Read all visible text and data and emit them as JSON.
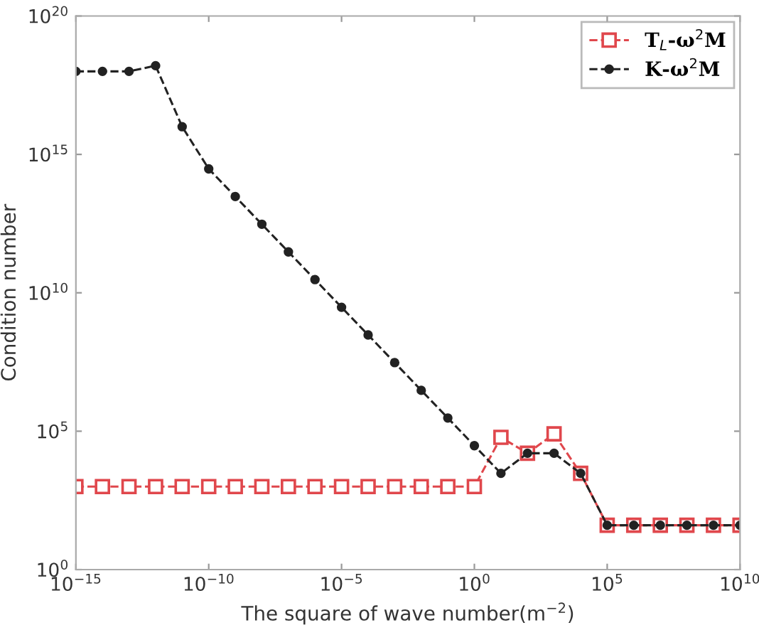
{
  "chart_data": {
    "type": "line",
    "xlabel": "The square of wave number(m$^{−2}$)",
    "ylabel": "Condition number",
    "log": "xy",
    "x": [
      1e-15,
      1e-14,
      1e-13,
      1e-12,
      1e-11,
      1e-10,
      1e-09,
      1e-08,
      1e-07,
      1e-06,
      1e-05,
      0.0001,
      0.001,
      0.01,
      0.1,
      1,
      10,
      100,
      1000,
      10000.0,
      100000.0,
      1000000.0,
      10000000.0,
      100000000.0,
      1000000000.0,
      10000000000.0
    ],
    "series": [
      {
        "name": "T$_{L}$-ω$^{2}$M",
        "color": "#e0474c",
        "marker": "square",
        "values": [
          1000,
          1000,
          1000,
          1000,
          1000,
          1000,
          1000,
          1000,
          1000,
          1000,
          1000,
          1000,
          1000,
          1000,
          1000,
          1000,
          60000.0,
          16000.0,
          80000.0,
          3000.0,
          40,
          40,
          40,
          40,
          40,
          40
        ]
      },
      {
        "name": "K-ω$^{2}$M",
        "color": "#222222",
        "marker": "circle",
        "values": [
          1e+18,
          1e+18,
          1e+18,
          1.6e+18,
          1e+16,
          300000000000000.0,
          30000000000000.0,
          3000000000000.0,
          300000000000.0,
          30000000000.0,
          3000000000.0,
          300000000.0,
          30000000.0,
          3000000.0,
          300000.0,
          30000.0,
          3000.0,
          16000.0,
          16000.0,
          3000.0,
          40,
          40,
          40,
          40,
          40,
          40
        ]
      }
    ],
    "xlim": [
      1e-15,
      10000000000.0
    ],
    "ylim": [
      1,
      1e+20
    ],
    "xticks": [
      {
        "value": 1e-15,
        "label": "10$^{−15}$"
      },
      {
        "value": 1e-10,
        "label": "10$^{−10}$"
      },
      {
        "value": 1e-05,
        "label": "10$^{−5}$"
      },
      {
        "value": 1,
        "label": "10$^{0}$"
      },
      {
        "value": 100000.0,
        "label": "10$^{5}$"
      },
      {
        "value": 10000000000.0,
        "label": "10$^{10}$"
      }
    ],
    "yticks": [
      {
        "value": 1,
        "label": "10$^{0}$"
      },
      {
        "value": 100000.0,
        "label": "10$^{5}$"
      },
      {
        "value": 10000000000.0,
        "label": "10$^{10}$"
      },
      {
        "value": 1000000000000000.0,
        "label": "10$^{15}$"
      },
      {
        "value": 1e+20,
        "label": "10$^{20}$"
      }
    ],
    "line_style": "dashed",
    "grid": false,
    "legend": "top right"
  }
}
